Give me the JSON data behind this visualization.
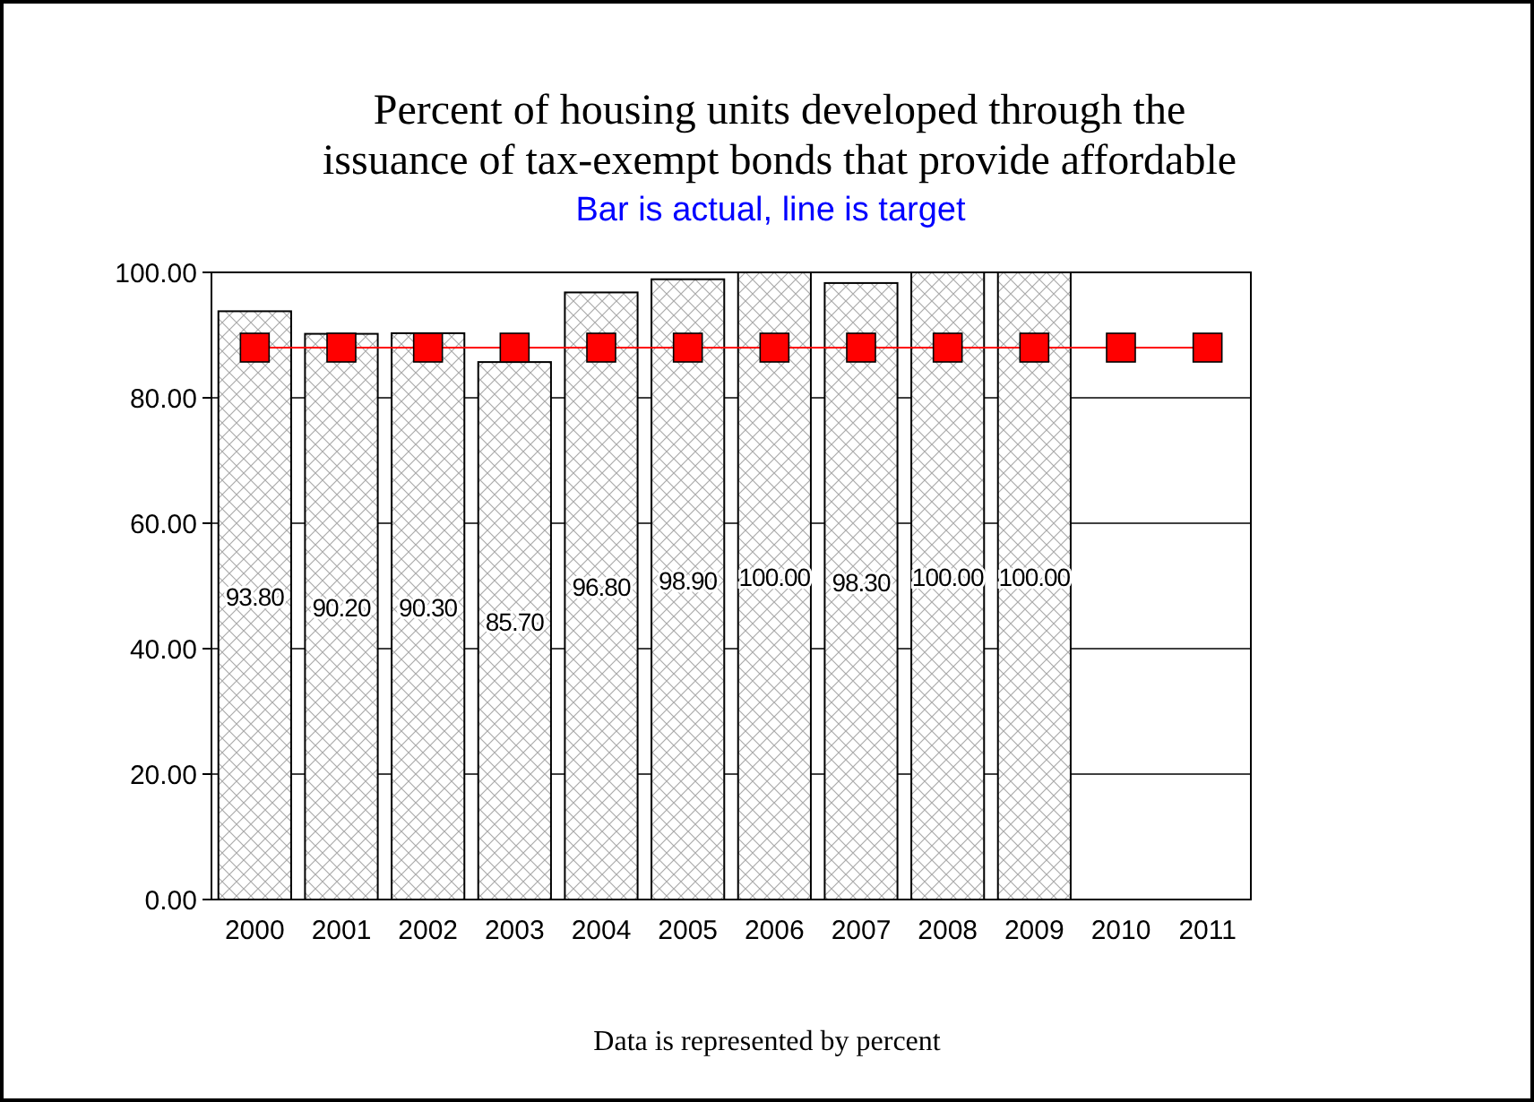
{
  "chart_data": {
    "type": "bar",
    "title": "Percent of housing units developed through the issuance of tax-exempt bonds that provide affordable",
    "subtitle": "Bar is actual, line is target",
    "annotations": [
      "Data is represented by percent"
    ],
    "categories": [
      "2000",
      "2001",
      "2002",
      "2003",
      "2004",
      "2005",
      "2006",
      "2007",
      "2008",
      "2009",
      "2010",
      "2011"
    ],
    "series": [
      {
        "color": "#ffffff",
        "values": [
          93.8,
          90.2,
          90.3,
          85.7,
          96.8,
          98.9,
          100,
          98.3,
          100,
          100,
          null,
          null
        ],
        "value_labels": [
          "93.80",
          "90.20",
          "90.30",
          "85.70",
          "96.80",
          "98.90",
          "100.00",
          "98.30",
          "100.00",
          "100.00",
          null,
          null
        ]
      },
      {
        "type": "line",
        "color": "#ff0000",
        "values": [
          88,
          88,
          88,
          88,
          88,
          88,
          88,
          88,
          88,
          88,
          88,
          88
        ],
        "marker": "square"
      }
    ],
    "ylim": [
      0,
      100
    ],
    "yticks": [
      {
        "value": 0,
        "label": "0.00"
      },
      {
        "value": 20,
        "label": "20.00"
      },
      {
        "value": 40,
        "label": "40.00"
      },
      {
        "value": 60,
        "label": "60.00"
      },
      {
        "value": 80,
        "label": "80.00"
      },
      {
        "value": 100,
        "label": "100.00"
      }
    ],
    "grid": "y",
    "legend": false
  }
}
